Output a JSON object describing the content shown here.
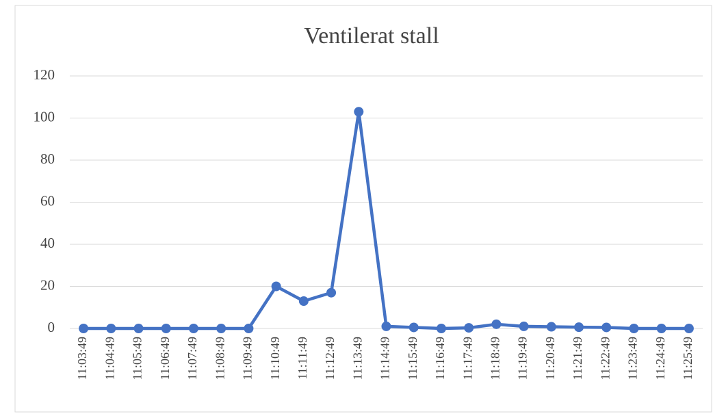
{
  "chart_data": {
    "type": "line",
    "title": "Ventilerat stall",
    "categories": [
      "11:03:49",
      "11:04:49",
      "11:05:49",
      "11:06:49",
      "11:07:49",
      "11:08:49",
      "11:09:49",
      "11:10:49",
      "11:11:49",
      "11:12:49",
      "11:13:49",
      "11:14:49",
      "11:15:49",
      "11:16:49",
      "11:17:49",
      "11:18:49",
      "11:19:49",
      "11:20:49",
      "11:21:49",
      "11:22:49",
      "11:23:49",
      "11:24:49",
      "11:25:49"
    ],
    "series": [
      {
        "name": "Ventilerat stall",
        "color": "#4472c4",
        "values": [
          0,
          0,
          0,
          0,
          0,
          0,
          0,
          20,
          13,
          17,
          103,
          1,
          0.5,
          0,
          0.3,
          2,
          1,
          0.8,
          0.6,
          0.5,
          0,
          0,
          0
        ]
      }
    ],
    "ylim": [
      0,
      120
    ],
    "yticks": [
      0,
      20,
      40,
      60,
      80,
      100,
      120
    ],
    "grid": true
  }
}
